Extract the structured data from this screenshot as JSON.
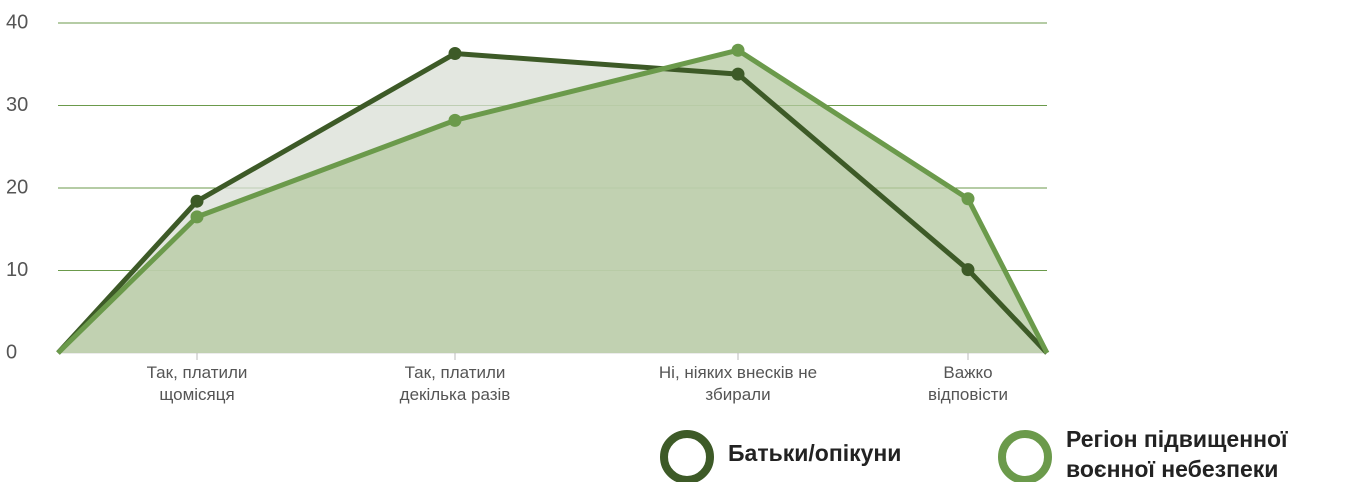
{
  "chart_data": {
    "type": "area",
    "categories": [
      null,
      "Так, платили щомісяця",
      "Так, платили декілька разів",
      "Ні, ніяких внесків не збирали",
      "Важко відповісти",
      null
    ],
    "series": [
      {
        "name": "Батьки/опікуни",
        "color": "#3d5a27",
        "fill": "#d9dfd6",
        "values": [
          0,
          18.4,
          36.3,
          33.8,
          10.1,
          0
        ]
      },
      {
        "name": "Регіон підвищенної воєнної небезпеки",
        "color": "#6b9a4b",
        "fill": "#b5caa2",
        "values": [
          0,
          16.5,
          28.2,
          36.7,
          18.7,
          0
        ]
      }
    ],
    "ylim": [
      0,
      40
    ],
    "yticks": [
      0,
      10,
      20,
      30,
      40
    ],
    "grid": true
  }
}
